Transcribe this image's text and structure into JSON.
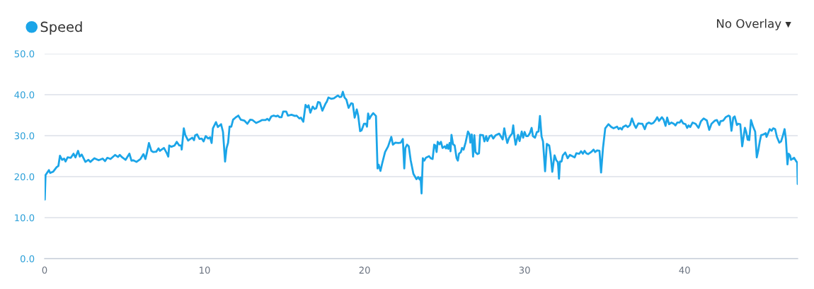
{
  "chart_data": {
    "type": "line",
    "series": [
      {
        "name": "Speed",
        "color": "#1ba5e8",
        "x": [
          0.01,
          0.06,
          0.27,
          0.35,
          0.53,
          0.75,
          0.86,
          0.96,
          1.09,
          1.22,
          1.31,
          1.44,
          1.64,
          1.81,
          1.93,
          2.09,
          2.2,
          2.32,
          2.55,
          2.74,
          2.86,
          3.11,
          3.38,
          3.63,
          3.78,
          3.92,
          4.12,
          4.41,
          4.59,
          4.7,
          4.85,
          5.06,
          5.3,
          5.43,
          5.54,
          5.74,
          5.99,
          6.18,
          6.3,
          6.39,
          6.52,
          6.67,
          6.8,
          6.98,
          7.12,
          7.21,
          7.46,
          7.64,
          7.73,
          7.79,
          7.93,
          8.12,
          8.26,
          8.42,
          8.54,
          8.57,
          8.7,
          8.79,
          8.97,
          9.08,
          9.23,
          9.34,
          9.41,
          9.53,
          9.68,
          9.82,
          9.94,
          10.07,
          10.22,
          10.34,
          10.44,
          10.52,
          10.71,
          10.83,
          11.03,
          11.15,
          11.28,
          11.37,
          11.47,
          11.56,
          11.67,
          11.78,
          11.93,
          12.11,
          12.26,
          12.48,
          12.67,
          12.85,
          13.0,
          13.22,
          13.44,
          13.58,
          13.81,
          13.92,
          14.03,
          14.17,
          14.32,
          14.47,
          14.57,
          14.69,
          14.81,
          14.91,
          15.1,
          15.21,
          15.43,
          15.65,
          15.75,
          15.92,
          16.02,
          16.17,
          16.31,
          16.42,
          16.5,
          16.61,
          16.76,
          16.87,
          16.98,
          17.09,
          17.2,
          17.36,
          17.57,
          17.64,
          17.74,
          17.91,
          18.08,
          18.33,
          18.45,
          18.55,
          18.64,
          18.75,
          18.86,
          19.0,
          19.16,
          19.26,
          19.38,
          19.51,
          19.6,
          19.72,
          19.81,
          19.96,
          20.08,
          20.15,
          20.22,
          20.3,
          20.4,
          20.54,
          20.71,
          20.81,
          20.88,
          20.99,
          21.11,
          21.28,
          21.47,
          21.67,
          21.77,
          21.92,
          22.11,
          22.26,
          22.39,
          22.48,
          22.55,
          22.65,
          22.76,
          22.88,
          23.05,
          23.24,
          23.35,
          23.44,
          23.5,
          23.56,
          23.64,
          23.73,
          23.83,
          24.03,
          24.13,
          24.25,
          24.35,
          24.42,
          24.5,
          24.57,
          24.68,
          24.77,
          24.87,
          25.01,
          25.09,
          25.16,
          25.23,
          25.31,
          25.37,
          25.43,
          25.53,
          25.63,
          25.75,
          25.83,
          25.9,
          26.02,
          26.09,
          26.19,
          26.31,
          26.46,
          26.56,
          26.61,
          26.7,
          26.78,
          26.86,
          26.93,
          27.05,
          27.15,
          27.22,
          27.4,
          27.49,
          27.6,
          27.67,
          27.82,
          27.93,
          28.04,
          28.19,
          28.41,
          28.63,
          28.73,
          28.82,
          28.92,
          29.03,
          29.15,
          29.22,
          29.29,
          29.37,
          29.44,
          29.59,
          29.69,
          29.82,
          29.91,
          30.0,
          30.1,
          30.21,
          30.33,
          30.44,
          30.52,
          30.65,
          30.77,
          30.87,
          30.96,
          31.06,
          31.15,
          31.28,
          31.39,
          31.54,
          31.62,
          31.73,
          31.87,
          31.98,
          32.07,
          32.1,
          32.15,
          32.21,
          32.31,
          32.39,
          32.54,
          32.69,
          32.83,
          32.98,
          33.13,
          33.23,
          33.42,
          33.53,
          33.64,
          33.75,
          33.86,
          33.97,
          34.16,
          34.31,
          34.41,
          34.53,
          34.68,
          34.78,
          34.9,
          35.04,
          35.24,
          35.42,
          35.56,
          35.78,
          35.88,
          35.97,
          36.08,
          36.15,
          36.33,
          36.45,
          36.59,
          36.71,
          36.86,
          36.96,
          37.11,
          37.26,
          37.36,
          37.51,
          37.63,
          37.77,
          37.92,
          38.04,
          38.19,
          38.29,
          38.4,
          38.58,
          38.69,
          38.81,
          38.91,
          39.03,
          39.18,
          39.33,
          39.43,
          39.54,
          39.69,
          39.79,
          39.91,
          40.06,
          40.16,
          40.25,
          40.35,
          40.5,
          40.69,
          40.87,
          41.02,
          41.19,
          41.39,
          41.54,
          41.68,
          41.9,
          42.02,
          42.17,
          42.24,
          42.42,
          42.57,
          42.74,
          42.83,
          42.93,
          43.04,
          43.13,
          43.27,
          43.35,
          43.48,
          43.6,
          43.77,
          43.85,
          43.94,
          44.0,
          44.04,
          44.15,
          44.29,
          44.41,
          44.51,
          44.6,
          44.7,
          44.78,
          44.92,
          45.07,
          45.12,
          45.22,
          45.32,
          45.44,
          45.54,
          45.66,
          45.77,
          45.92,
          46.03,
          46.15,
          46.25,
          46.33,
          46.43,
          46.5,
          46.59,
          46.65,
          46.84,
          46.95,
          47.04,
          47.07
        ],
        "values": [
          14.4,
          20.4,
          21.6,
          20.9,
          21.2,
          22.3,
          22.6,
          25.1,
          24.1,
          24.4,
          23.7,
          24.7,
          24.6,
          25.6,
          24.7,
          26.3,
          24.9,
          25.4,
          23.6,
          24.1,
          23.6,
          24.5,
          24.0,
          24.4,
          23.8,
          24.6,
          24.3,
          25.3,
          24.8,
          25.3,
          24.7,
          24.1,
          25.6,
          23.9,
          24.0,
          23.6,
          24.3,
          25.5,
          24.3,
          25.7,
          28.2,
          26.3,
          26.0,
          26.1,
          26.9,
          26.3,
          27.0,
          25.7,
          24.9,
          27.6,
          27.3,
          27.6,
          28.5,
          27.6,
          27.6,
          26.6,
          31.8,
          30.2,
          28.8,
          29.1,
          29.5,
          28.9,
          30.1,
          30.3,
          29.2,
          29.3,
          28.6,
          29.9,
          29.3,
          29.6,
          28.2,
          31.8,
          33.3,
          32.1,
          32.8,
          30.9,
          23.7,
          26.9,
          28.3,
          32.2,
          32.2,
          33.9,
          34.4,
          34.9,
          33.9,
          33.7,
          32.9,
          33.9,
          33.8,
          33.1,
          33.5,
          33.8,
          33.8,
          34.1,
          33.7,
          34.7,
          34.9,
          34.7,
          34.9,
          34.5,
          34.5,
          35.9,
          35.9,
          34.9,
          35.1,
          34.8,
          34.9,
          34.2,
          34.4,
          33.4,
          37.5,
          36.9,
          37.4,
          35.6,
          37.1,
          36.5,
          36.7,
          38.2,
          38.1,
          36.1,
          37.9,
          38.3,
          39.3,
          39.0,
          39.1,
          39.8,
          39.4,
          39.5,
          40.7,
          39.3,
          38.8,
          36.8,
          37.9,
          37.8,
          34.4,
          36.4,
          34.9,
          31.1,
          31.3,
          32.9,
          32.9,
          32.2,
          35.4,
          34.1,
          34.8,
          35.5,
          34.8,
          22.0,
          22.9,
          21.4,
          23.4,
          26.0,
          27.4,
          29.7,
          27.8,
          28.3,
          28.2,
          28.3,
          29.2,
          22.0,
          27.0,
          27.8,
          27.4,
          24.0,
          20.7,
          19.4,
          19.9,
          19.3,
          19.8,
          15.9,
          24.5,
          23.9,
          24.6,
          25.0,
          24.5,
          24.3,
          27.8,
          27.6,
          26.0,
          28.5,
          27.9,
          28.5,
          27.0,
          27.4,
          26.9,
          27.8,
          26.8,
          28.2,
          26.2,
          30.2,
          27.9,
          27.6,
          24.5,
          23.9,
          25.6,
          26.0,
          27.0,
          26.6,
          28.3,
          31.0,
          30.3,
          28.3,
          30.3,
          24.9,
          30.1,
          26.0,
          25.5,
          25.7,
          30.2,
          30.1,
          28.6,
          29.9,
          28.7,
          29.9,
          30.1,
          29.3,
          30.1,
          30.5,
          29.1,
          31.8,
          29.9,
          28.2,
          29.5,
          30.2,
          30.5,
          32.5,
          29.5,
          27.8,
          30.2,
          28.7,
          31.0,
          29.5,
          30.9,
          29.9,
          29.9,
          30.6,
          31.9,
          29.9,
          29.5,
          30.9,
          31.0,
          34.8,
          29.8,
          28.6,
          21.3,
          28.0,
          27.6,
          25.5,
          21.2,
          25.2,
          24.0,
          23.6,
          22.6,
          19.5,
          23.7,
          23.7,
          25.2,
          25.9,
          24.5,
          25.3,
          25.0,
          24.7,
          25.7,
          25.6,
          26.2,
          25.6,
          26.3,
          25.7,
          25.5,
          26.0,
          26.6,
          26.0,
          26.4,
          26.3,
          21.0,
          27.0,
          31.8,
          32.8,
          32.1,
          31.8,
          32.2,
          31.6,
          31.9,
          31.5,
          32.1,
          32.5,
          32.1,
          32.6,
          34.2,
          32.6,
          31.9,
          33.0,
          32.9,
          32.9,
          31.6,
          32.9,
          33.2,
          32.9,
          33.1,
          33.8,
          34.5,
          33.6,
          34.5,
          33.9,
          32.4,
          34.4,
          32.8,
          33.2,
          32.9,
          32.5,
          33.2,
          33.2,
          33.8,
          33.0,
          32.8,
          31.9,
          32.5,
          32.1,
          33.2,
          32.9,
          31.9,
          33.5,
          34.2,
          33.7,
          31.4,
          32.9,
          33.7,
          33.8,
          32.6,
          33.5,
          33.7,
          34.5,
          34.9,
          34.7,
          31.2,
          34.4,
          34.7,
          32.6,
          32.9,
          32.8,
          27.4,
          31.9,
          30.9,
          29.0,
          29.9,
          28.9,
          33.8,
          32.1,
          31.0,
          24.7,
          26.3,
          28.6,
          30.1,
          30.3,
          30.6,
          29.7,
          30.6,
          31.6,
          31.2,
          31.8,
          31.6,
          29.7,
          28.3,
          28.6,
          30.1,
          31.6,
          29.2,
          23.0,
          25.6,
          25.2,
          24.1,
          24.6,
          23.9,
          23.4,
          18.2
        ]
      }
    ],
    "xlim": [
      0,
      47.07
    ],
    "xticks": [
      0,
      10,
      20,
      30,
      40
    ],
    "ylim": [
      0,
      50
    ],
    "yticks": [
      {
        "value": 0,
        "label": "0.0"
      },
      {
        "value": 10,
        "label": "10.0"
      },
      {
        "value": 20,
        "label": "20.0"
      },
      {
        "value": 30,
        "label": "30.0"
      },
      {
        "value": 40,
        "label": "40.0"
      },
      {
        "value": 50,
        "label": "50.0"
      }
    ],
    "grid": "y",
    "legend": "top left",
    "line_style": "solid",
    "annotations": [
      "No Overlay ▾"
    ]
  }
}
